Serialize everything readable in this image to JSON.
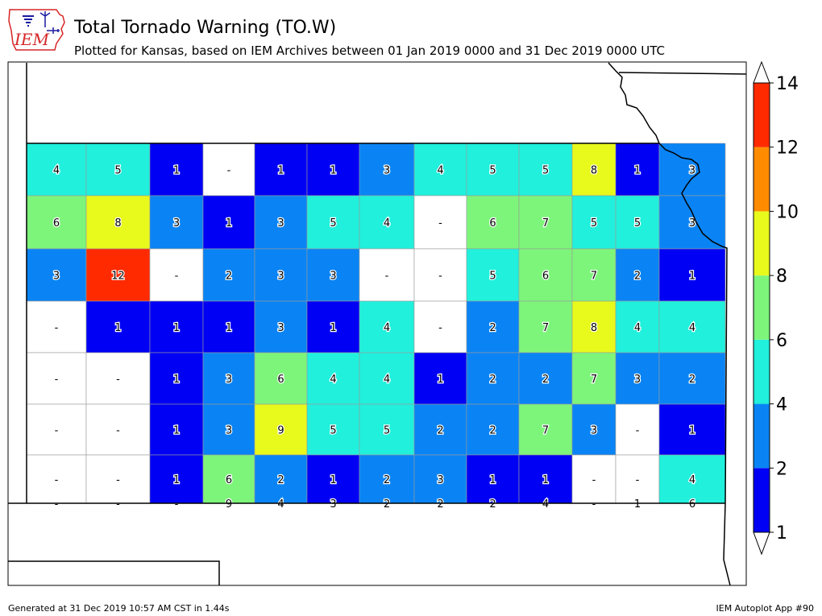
{
  "header": {
    "title": "Total Tornado Warning (TO.W)",
    "subtitle": "Plotted for Kansas, based on IEM Archives  between 01 Jan 2019 0000 and 31 Dec 2019 0000 UTC",
    "logo_text": "IEM",
    "logo_color": "#d62728",
    "logo_icon": "iowa-state-outline-icon"
  },
  "footer": {
    "generated": "Generated at 31 Dec 2019 10:57 AM CST in 1.44s",
    "app": "IEM Autoplot App #90"
  },
  "colorbar": {
    "tick_labels": [
      "1",
      "2",
      "4",
      "6",
      "8",
      "10",
      "12",
      "14"
    ],
    "bins": [
      {
        "color": "#0000f4"
      },
      {
        "color": "#0a84f4"
      },
      {
        "color": "#20f0dc"
      },
      {
        "color": "#7df57a"
      },
      {
        "color": "#e8f91c"
      },
      {
        "color": "#ff8c00"
      },
      {
        "color": "#ff2a00"
      }
    ],
    "extend_both": true
  },
  "map": {
    "state": "Kansas",
    "no_data_label": "-",
    "rows": [
      [
        "4",
        "5",
        "1",
        "-",
        "1",
        "1",
        "3",
        "4",
        "5",
        "5",
        "8",
        "1",
        "3"
      ],
      [
        "6",
        "8",
        "3",
        "1",
        "3",
        "5",
        "4",
        "-",
        "6",
        "7",
        "5",
        "5",
        "3"
      ],
      [
        "3",
        "12",
        "-",
        "2",
        "3",
        "3",
        "-",
        "-",
        "5",
        "6",
        "7",
        "2",
        "1"
      ],
      [
        "-",
        "1",
        "1",
        "1",
        "3",
        "1",
        "4",
        "-",
        "2",
        "7",
        "8",
        "4",
        "4"
      ],
      [
        "-",
        "-",
        "1",
        "3",
        "6",
        "4",
        "4",
        "1",
        "2",
        "2",
        "7",
        "3",
        "2"
      ],
      [
        "-",
        "-",
        "1",
        "3",
        "9",
        "5",
        "5",
        "2",
        "2",
        "7",
        "3",
        "-",
        "1"
      ],
      [
        "-",
        "-",
        "1",
        "6",
        "2",
        "1",
        "2",
        "3",
        "1",
        "1",
        "-",
        "-",
        "4"
      ],
      [
        "-",
        "-",
        "-",
        "9",
        "4",
        "3",
        "2",
        "2",
        "2",
        "4",
        "-",
        "1",
        "6"
      ]
    ]
  }
}
